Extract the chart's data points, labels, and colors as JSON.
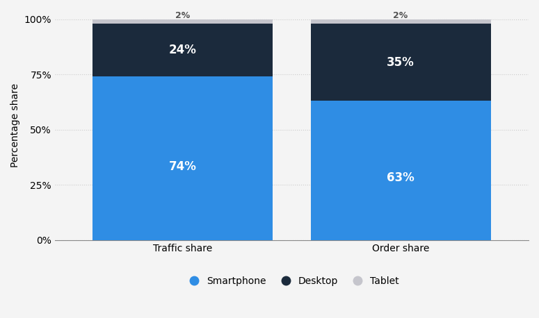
{
  "categories": [
    "Traffic share",
    "Order share"
  ],
  "smartphone": [
    74,
    63
  ],
  "desktop": [
    24,
    35
  ],
  "tablet": [
    2,
    2
  ],
  "smartphone_color": "#2f8de4",
  "desktop_color": "#1b2a3c",
  "tablet_color": "#c5c5cc",
  "ylabel": "Percentage share",
  "yticks": [
    0,
    25,
    50,
    75,
    100
  ],
  "ytick_labels": [
    "0%",
    "25%",
    "50%",
    "75%",
    "100%"
  ],
  "bar_width": 0.38,
  "background_color": "#f4f4f4",
  "plot_bg_color": "#f4f4f4",
  "grid_color": "#cccccc",
  "label_fontsize": 10,
  "annotation_fontsize": 12,
  "legend_labels": [
    "Smartphone",
    "Desktop",
    "Tablet"
  ],
  "x_positions": [
    0.27,
    0.73
  ]
}
